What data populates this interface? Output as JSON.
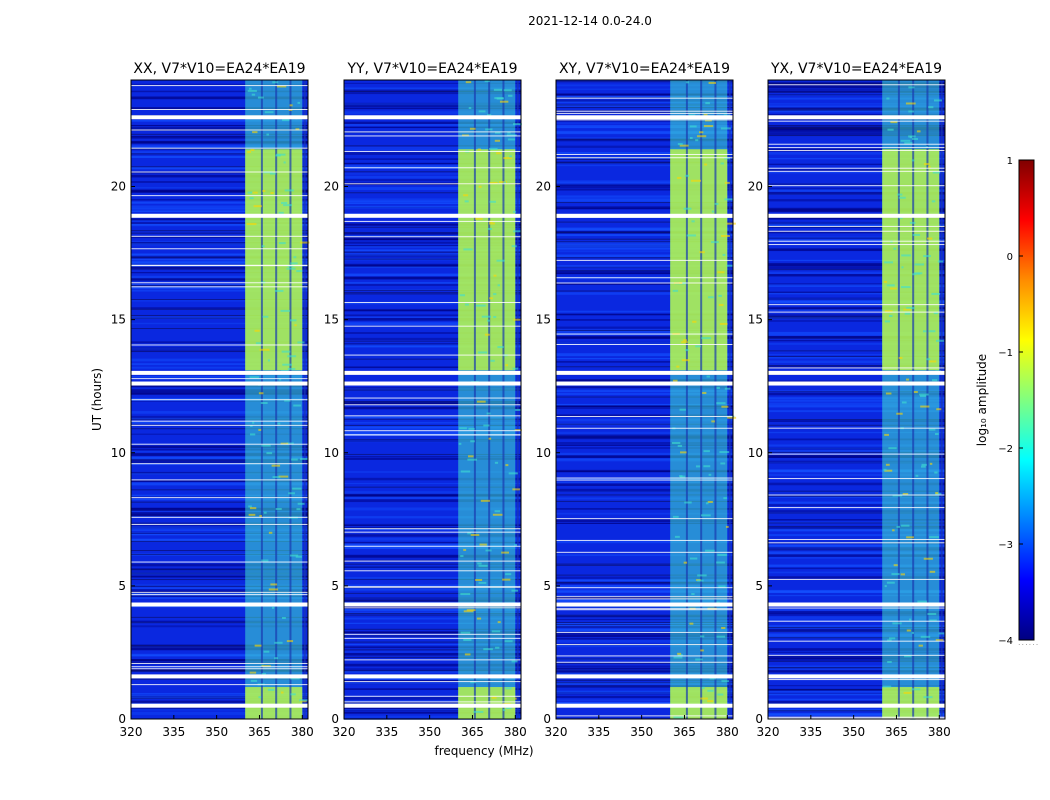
{
  "figure_title": "2021-12-14 0.0-24.0",
  "colors": {
    "background": "#000080",
    "noise_a": "#0a28e0",
    "noise_b": "#1450ff",
    "band_mid": "#40e0d0",
    "band_high": "#c8ff3c",
    "band_peak": "#ffd700",
    "gap": "#ffffff"
  },
  "chart_data": [
    {
      "type": "heatmap",
      "title": "XX, V7*V10=EA24*EA19",
      "xlabel": "",
      "ylabel": "UT (hours)",
      "xlim": [
        320,
        382
      ],
      "ylim": [
        0,
        24
      ],
      "xticks": [
        320,
        335,
        350,
        365,
        380
      ],
      "yticks": [
        0,
        5,
        10,
        15,
        20
      ],
      "signal_band_mhz": [
        360,
        380
      ],
      "signal_columns_mhz": [
        362,
        367,
        372,
        377
      ],
      "gap_hours": [
        0.5,
        1.6,
        4.3,
        12.6,
        13.0,
        18.9,
        22.6
      ],
      "bright_intervals_hours": [
        [
          0.0,
          1.2
        ],
        [
          13.1,
          21.4
        ]
      ]
    },
    {
      "type": "heatmap",
      "title": "YY, V7*V10=EA24*EA19",
      "xlabel": "frequency (MHz)",
      "ylabel": "",
      "xlim": [
        320,
        382
      ],
      "ylim": [
        0,
        24
      ],
      "xticks": [
        320,
        335,
        350,
        365,
        380
      ],
      "yticks": [
        0,
        5,
        10,
        15,
        20
      ],
      "signal_band_mhz": [
        360,
        380
      ],
      "signal_columns_mhz": [
        362,
        367,
        372,
        377
      ],
      "gap_hours": [
        0.5,
        1.6,
        4.3,
        12.6,
        13.0,
        18.9,
        22.6
      ],
      "bright_intervals_hours": [
        [
          0.0,
          1.2
        ],
        [
          13.1,
          21.4
        ]
      ]
    },
    {
      "type": "heatmap",
      "title": "XY, V7*V10=EA24*EA19",
      "xlabel": "",
      "ylabel": "",
      "xlim": [
        320,
        382
      ],
      "ylim": [
        0,
        24
      ],
      "xticks": [
        320,
        335,
        350,
        365,
        380
      ],
      "yticks": [
        0,
        5,
        10,
        15,
        20
      ],
      "signal_band_mhz": [
        360,
        380
      ],
      "signal_columns_mhz": [
        362,
        367,
        372,
        377
      ],
      "gap_hours": [
        0.5,
        1.6,
        4.3,
        12.6,
        13.0,
        18.9,
        22.6
      ],
      "bright_intervals_hours": [
        [
          0.0,
          1.2
        ],
        [
          13.1,
          21.4
        ]
      ]
    },
    {
      "type": "heatmap",
      "title": "YX, V7*V10=EA24*EA19",
      "xlabel": "",
      "ylabel": "",
      "xlim": [
        320,
        382
      ],
      "ylim": [
        0,
        24
      ],
      "xticks": [
        320,
        335,
        350,
        365,
        380
      ],
      "yticks": [
        0,
        5,
        10,
        15,
        20
      ],
      "signal_band_mhz": [
        360,
        380
      ],
      "signal_columns_mhz": [
        362,
        367,
        372,
        377
      ],
      "gap_hours": [
        0.5,
        1.6,
        4.3,
        12.6,
        13.0,
        18.9,
        22.6
      ],
      "bright_intervals_hours": [
        [
          0.0,
          1.2
        ],
        [
          13.1,
          21.4
        ]
      ]
    }
  ],
  "colorbar": {
    "label": "log₁₀ amplitude",
    "range": [
      -4,
      1
    ],
    "ticks": [
      1,
      0,
      -1,
      -2,
      -3,
      -4
    ],
    "tick_labels": [
      "1",
      "0",
      "−1",
      "−2",
      "−3",
      "−4"
    ],
    "footer": "......",
    "colormap_stops": [
      "#800000",
      "#ff0000",
      "#ff8c00",
      "#ffff00",
      "#80ff80",
      "#00ffff",
      "#0080ff",
      "#0000ff",
      "#000080"
    ]
  }
}
